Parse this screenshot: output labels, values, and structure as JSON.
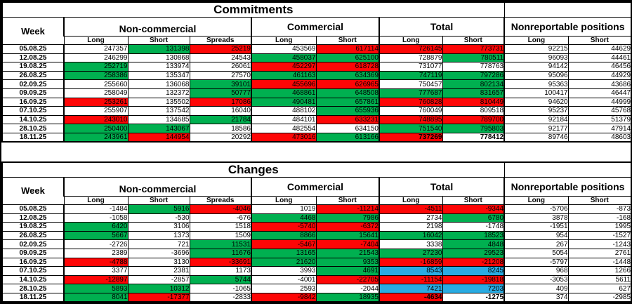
{
  "colors": {
    "positive_green": "#00b050",
    "negative_red": "#fe0606",
    "highlight_blue": "#29abe2"
  },
  "tables": [
    {
      "title": "Commitments",
      "week_header": "Week",
      "groups": [
        {
          "label": "Non-commercial",
          "cols": [
            "Long",
            "Short",
            "Spreads"
          ]
        },
        {
          "label": "Commercial",
          "cols": [
            "Long",
            "Short"
          ]
        },
        {
          "label": "Total",
          "cols": [
            "Long",
            "Short"
          ]
        },
        {
          "label": "Nonreportable positions",
          "cols": [
            "Long",
            "Short"
          ]
        }
      ],
      "rows": [
        {
          "week": "05.08.25",
          "cells": [
            [
              "247357",
              ""
            ],
            [
              "131398",
              "g"
            ],
            [
              "25219",
              "r"
            ],
            [
              "453569",
              ""
            ],
            [
              "617114",
              "r"
            ],
            [
              "726145",
              "r"
            ],
            [
              "773731",
              "r"
            ],
            [
              "92215",
              ""
            ],
            [
              "44629",
              ""
            ]
          ]
        },
        {
          "week": "12.08.25",
          "cells": [
            [
              "246299",
              ""
            ],
            [
              "130868",
              ""
            ],
            [
              "24543",
              ""
            ],
            [
              "458037",
              "g"
            ],
            [
              "625100",
              "g"
            ],
            [
              "728879",
              ""
            ],
            [
              "780511",
              "g"
            ],
            [
              "96093",
              ""
            ],
            [
              "44461",
              ""
            ]
          ]
        },
        {
          "week": "19.08.25",
          "cells": [
            [
              "252719",
              "g"
            ],
            [
              "133974",
              ""
            ],
            [
              "26061",
              ""
            ],
            [
              "452297",
              "r"
            ],
            [
              "618728",
              "r"
            ],
            [
              "731077",
              ""
            ],
            [
              "778763",
              ""
            ],
            [
              "94142",
              ""
            ],
            [
              "46456",
              ""
            ]
          ]
        },
        {
          "week": "26.08.25",
          "cells": [
            [
              "258386",
              "g"
            ],
            [
              "135347",
              ""
            ],
            [
              "27570",
              ""
            ],
            [
              "461163",
              "g"
            ],
            [
              "634369",
              "g"
            ],
            [
              "747119",
              "g"
            ],
            [
              "797286",
              "g"
            ],
            [
              "95096",
              ""
            ],
            [
              "44929",
              ""
            ]
          ]
        },
        {
          "week": "02.09.25",
          "cells": [
            [
              "255660",
              ""
            ],
            [
              "136068",
              ""
            ],
            [
              "39101",
              "g"
            ],
            [
              "455696",
              "r"
            ],
            [
              "626965",
              "r"
            ],
            [
              "750457",
              ""
            ],
            [
              "802134",
              "g"
            ],
            [
              "95363",
              ""
            ],
            [
              "43686",
              ""
            ]
          ]
        },
        {
          "week": "09.09.25",
          "cells": [
            [
              "258049",
              ""
            ],
            [
              "132372",
              ""
            ],
            [
              "50777",
              "g"
            ],
            [
              "468861",
              "g"
            ],
            [
              "648508",
              "g"
            ],
            [
              "777687",
              "g"
            ],
            [
              "831657",
              "g"
            ],
            [
              "100417",
              ""
            ],
            [
              "46447",
              ""
            ]
          ]
        },
        {
          "week": "16.09.25",
          "cells": [
            [
              "253261",
              "r"
            ],
            [
              "135502",
              ""
            ],
            [
              "17086",
              "r"
            ],
            [
              "490481",
              "g"
            ],
            [
              "657861",
              "g"
            ],
            [
              "760828",
              "r"
            ],
            [
              "810449",
              "r"
            ],
            [
              "94620",
              ""
            ],
            [
              "44999",
              ""
            ]
          ]
        },
        {
          "week": "07.10.25",
          "cells": [
            [
              "255907",
              ""
            ],
            [
              "137542",
              ""
            ],
            [
              "16040",
              ""
            ],
            [
              "488102",
              ""
            ],
            [
              "655936",
              "g"
            ],
            [
              "760049",
              ""
            ],
            [
              "809518",
              ""
            ],
            [
              "95237",
              ""
            ],
            [
              "45768",
              ""
            ]
          ]
        },
        {
          "week": "14.10.25",
          "cells": [
            [
              "243010",
              "r"
            ],
            [
              "134685",
              ""
            ],
            [
              "21784",
              "g"
            ],
            [
              "484101",
              ""
            ],
            [
              "633231",
              "r"
            ],
            [
              "748895",
              "r"
            ],
            [
              "789700",
              "r"
            ],
            [
              "92184",
              ""
            ],
            [
              "51379",
              ""
            ]
          ]
        },
        {
          "week": "28.10.25",
          "cells": [
            [
              "250400",
              "g"
            ],
            [
              "143067",
              "g"
            ],
            [
              "18586",
              ""
            ],
            [
              "482554",
              ""
            ],
            [
              "634150",
              ""
            ],
            [
              "751540",
              "g"
            ],
            [
              "795803",
              "g"
            ],
            [
              "92177",
              ""
            ],
            [
              "47914",
              ""
            ]
          ]
        },
        {
          "week": "18.11.25",
          "cells": [
            [
              "243961",
              "g"
            ],
            [
              "144954",
              "r"
            ],
            [
              "20292",
              ""
            ],
            [
              "473016",
              "r"
            ],
            [
              "613166",
              "g"
            ],
            [
              "737269",
              "r",
              1
            ],
            [
              "778412",
              "",
              1
            ],
            [
              "89746",
              ""
            ],
            [
              "48603",
              ""
            ]
          ]
        }
      ]
    },
    {
      "title": "Changes",
      "week_header": "Week",
      "groups": [
        {
          "label": "Non-commercial",
          "cols": [
            "Long",
            "Short",
            "Spreads"
          ]
        },
        {
          "label": "Commercial",
          "cols": [
            "Long",
            "Short"
          ]
        },
        {
          "label": "Total",
          "cols": [
            "Long",
            "Short"
          ]
        },
        {
          "label": "Nonreportable positions",
          "cols": [
            "Long",
            "Short"
          ]
        }
      ],
      "rows": [
        {
          "week": "05.08.25",
          "cells": [
            [
              "-1484",
              ""
            ],
            [
              "5916",
              "g"
            ],
            [
              "-4046",
              "r"
            ],
            [
              "1019",
              ""
            ],
            [
              "-11214",
              "r"
            ],
            [
              "-4511",
              "r"
            ],
            [
              "-9344",
              "r"
            ],
            [
              "-5706",
              ""
            ],
            [
              "-873",
              ""
            ]
          ]
        },
        {
          "week": "12.08.25",
          "cells": [
            [
              "-1058",
              ""
            ],
            [
              "-530",
              ""
            ],
            [
              "-676",
              ""
            ],
            [
              "4468",
              "g"
            ],
            [
              "7986",
              "g"
            ],
            [
              "2734",
              ""
            ],
            [
              "6780",
              "g"
            ],
            [
              "3878",
              ""
            ],
            [
              "-168",
              ""
            ]
          ]
        },
        {
          "week": "19.08.25",
          "cells": [
            [
              "6420",
              "g"
            ],
            [
              "3106",
              ""
            ],
            [
              "1518",
              ""
            ],
            [
              "-5740",
              "r"
            ],
            [
              "-6372",
              "r"
            ],
            [
              "2198",
              ""
            ],
            [
              "-1748",
              ""
            ],
            [
              "-1951",
              ""
            ],
            [
              "1995",
              ""
            ]
          ]
        },
        {
          "week": "26.08.25",
          "cells": [
            [
              "5667",
              "g"
            ],
            [
              "1373",
              ""
            ],
            [
              "1509",
              ""
            ],
            [
              "8866",
              "g"
            ],
            [
              "15641",
              "g"
            ],
            [
              "16042",
              "g"
            ],
            [
              "18523",
              "g"
            ],
            [
              "954",
              ""
            ],
            [
              "-1527",
              ""
            ]
          ]
        },
        {
          "week": "02.09.25",
          "cells": [
            [
              "-2726",
              ""
            ],
            [
              "721",
              ""
            ],
            [
              "11531",
              "g"
            ],
            [
              "-5467",
              "r"
            ],
            [
              "-7404",
              "r"
            ],
            [
              "3338",
              ""
            ],
            [
              "4848",
              "g"
            ],
            [
              "267",
              ""
            ],
            [
              "-1243",
              ""
            ]
          ]
        },
        {
          "week": "09.09.25",
          "cells": [
            [
              "2389",
              ""
            ],
            [
              "-3696",
              ""
            ],
            [
              "11676",
              "g"
            ],
            [
              "13165",
              "g"
            ],
            [
              "21543",
              "g"
            ],
            [
              "27230",
              "g"
            ],
            [
              "29523",
              "g"
            ],
            [
              "5054",
              ""
            ],
            [
              "2761",
              ""
            ]
          ]
        },
        {
          "week": "16.09.25",
          "cells": [
            [
              "-4788",
              "r"
            ],
            [
              "3130",
              ""
            ],
            [
              "-33691",
              "r"
            ],
            [
              "21620",
              "g"
            ],
            [
              "9353",
              "g"
            ],
            [
              "-16859",
              "r"
            ],
            [
              "-21208",
              "r"
            ],
            [
              "-5797",
              ""
            ],
            [
              "-1448",
              ""
            ]
          ]
        },
        {
          "week": "07.10.25",
          "cells": [
            [
              "3377",
              ""
            ],
            [
              "2381",
              ""
            ],
            [
              "1173",
              ""
            ],
            [
              "3993",
              ""
            ],
            [
              "4691",
              "g"
            ],
            [
              "8543",
              "b"
            ],
            [
              "8245",
              "b"
            ],
            [
              "968",
              ""
            ],
            [
              "1266",
              ""
            ]
          ]
        },
        {
          "week": "14.10.25",
          "cells": [
            [
              "-12897",
              "r"
            ],
            [
              "-2857",
              ""
            ],
            [
              "5744",
              "g"
            ],
            [
              "-4001",
              ""
            ],
            [
              "-22705",
              "r"
            ],
            [
              "-11154",
              "r"
            ],
            [
              "-19818",
              "r"
            ],
            [
              "-3053",
              ""
            ],
            [
              "5611",
              ""
            ]
          ]
        },
        {
          "week": "28.10.25",
          "cells": [
            [
              "5893",
              "g"
            ],
            [
              "10312",
              "g"
            ],
            [
              "-1065",
              ""
            ],
            [
              "2593",
              ""
            ],
            [
              "-2044",
              ""
            ],
            [
              "7421",
              "b"
            ],
            [
              "7203",
              "b"
            ],
            [
              "409",
              ""
            ],
            [
              "627",
              ""
            ]
          ]
        },
        {
          "week": "18.11.25",
          "cells": [
            [
              "8041",
              "g"
            ],
            [
              "-17377",
              "r"
            ],
            [
              "-2833",
              ""
            ],
            [
              "-9842",
              "r"
            ],
            [
              "18935",
              "g"
            ],
            [
              "-4634",
              "r",
              1
            ],
            [
              "-1275",
              "",
              1
            ],
            [
              "374",
              ""
            ],
            [
              "-2985",
              ""
            ]
          ]
        }
      ]
    }
  ]
}
